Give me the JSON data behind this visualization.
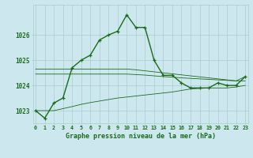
{
  "hours": [
    0,
    1,
    2,
    3,
    4,
    5,
    6,
    7,
    8,
    9,
    10,
    11,
    12,
    13,
    14,
    15,
    16,
    17,
    18,
    19,
    20,
    21,
    22,
    23
  ],
  "line_main": [
    1023.0,
    1022.7,
    1023.3,
    1023.5,
    1024.7,
    1025.0,
    1025.2,
    1025.8,
    1026.0,
    1026.15,
    1026.8,
    1026.3,
    1026.3,
    1025.0,
    1024.4,
    1024.4,
    1024.1,
    1023.9,
    1023.9,
    1023.9,
    1024.1,
    1024.0,
    1024.0,
    1024.35
  ],
  "line_max": [
    1024.65,
    1024.65,
    1024.65,
    1024.65,
    1024.65,
    1024.65,
    1024.65,
    1024.65,
    1024.65,
    1024.65,
    1024.65,
    1024.62,
    1024.58,
    1024.54,
    1024.5,
    1024.46,
    1024.42,
    1024.38,
    1024.34,
    1024.3,
    1024.26,
    1024.22,
    1024.18,
    1024.35
  ],
  "line_min": [
    1023.0,
    1023.0,
    1023.0,
    1023.08,
    1023.16,
    1023.25,
    1023.32,
    1023.38,
    1023.44,
    1023.5,
    1023.54,
    1023.58,
    1023.62,
    1023.66,
    1023.7,
    1023.74,
    1023.8,
    1023.86,
    1023.88,
    1023.9,
    1023.9,
    1023.9,
    1023.94,
    1024.0
  ],
  "line_avg": [
    1024.45,
    1024.45,
    1024.45,
    1024.45,
    1024.45,
    1024.45,
    1024.45,
    1024.45,
    1024.45,
    1024.45,
    1024.45,
    1024.43,
    1024.41,
    1024.38,
    1024.35,
    1024.33,
    1024.3,
    1024.28,
    1024.26,
    1024.24,
    1024.22,
    1024.2,
    1024.18,
    1024.18
  ],
  "ylim": [
    1022.5,
    1027.2
  ],
  "yticks": [
    1023,
    1024,
    1025,
    1026
  ],
  "xlabel": "Graphe pression niveau de la mer (hPa)",
  "bg_color": "#cce8ee",
  "line_color": "#1a6b1a",
  "grid_color": "#aacccc",
  "tick_color": "#1a6b1a"
}
